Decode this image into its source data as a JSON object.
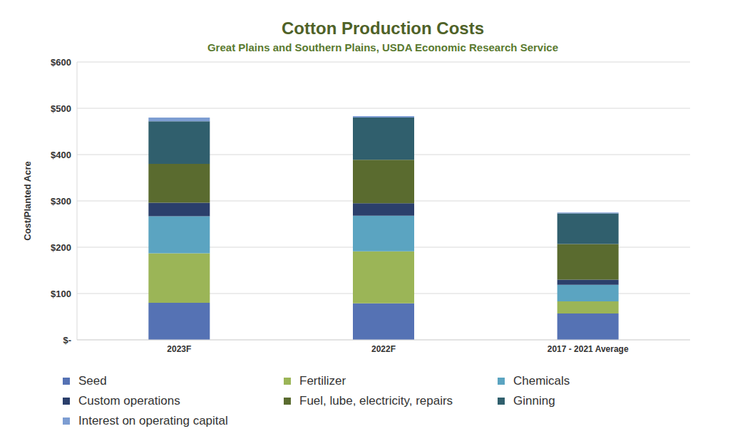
{
  "chart_data": {
    "type": "bar",
    "title": "Cotton Production Costs",
    "subtitle": "Great Plains and Southern Plains, USDA Economic Research Service",
    "y_label": "Cost/Planted Acre",
    "categories": [
      "2023F",
      "2022F",
      "2017 - 2021 Average"
    ],
    "series": [
      {
        "name": "Seed",
        "color": "#5572b4",
        "values": [
          80,
          79,
          57
        ]
      },
      {
        "name": "Fertilizer",
        "color": "#9bb557",
        "values": [
          107,
          112,
          26
        ]
      },
      {
        "name": "Chemicals",
        "color": "#5ba4c1",
        "values": [
          80,
          77,
          36
        ]
      },
      {
        "name": "Custom operations",
        "color": "#2b3f6b",
        "values": [
          29,
          27,
          11
        ]
      },
      {
        "name": "Fuel, lube, electricity, repairs",
        "color": "#5a6b2f",
        "values": [
          84,
          94,
          77
        ]
      },
      {
        "name": "Ginning",
        "color": "#305f6d",
        "values": [
          92,
          91,
          66
        ]
      },
      {
        "name": "Interest on operating capital",
        "color": "#7d9dd2",
        "values": [
          8,
          3,
          2
        ]
      }
    ],
    "ylim": [
      0,
      600
    ],
    "yticks": [
      {
        "value": 0,
        "label": "$-"
      },
      {
        "value": 100,
        "label": "$100"
      },
      {
        "value": 200,
        "label": "$200"
      },
      {
        "value": 300,
        "label": "$300"
      },
      {
        "value": 400,
        "label": "$400"
      },
      {
        "value": 500,
        "label": "$500"
      },
      {
        "value": 600,
        "label": "$600"
      }
    ],
    "stacked": true,
    "grid": true
  }
}
